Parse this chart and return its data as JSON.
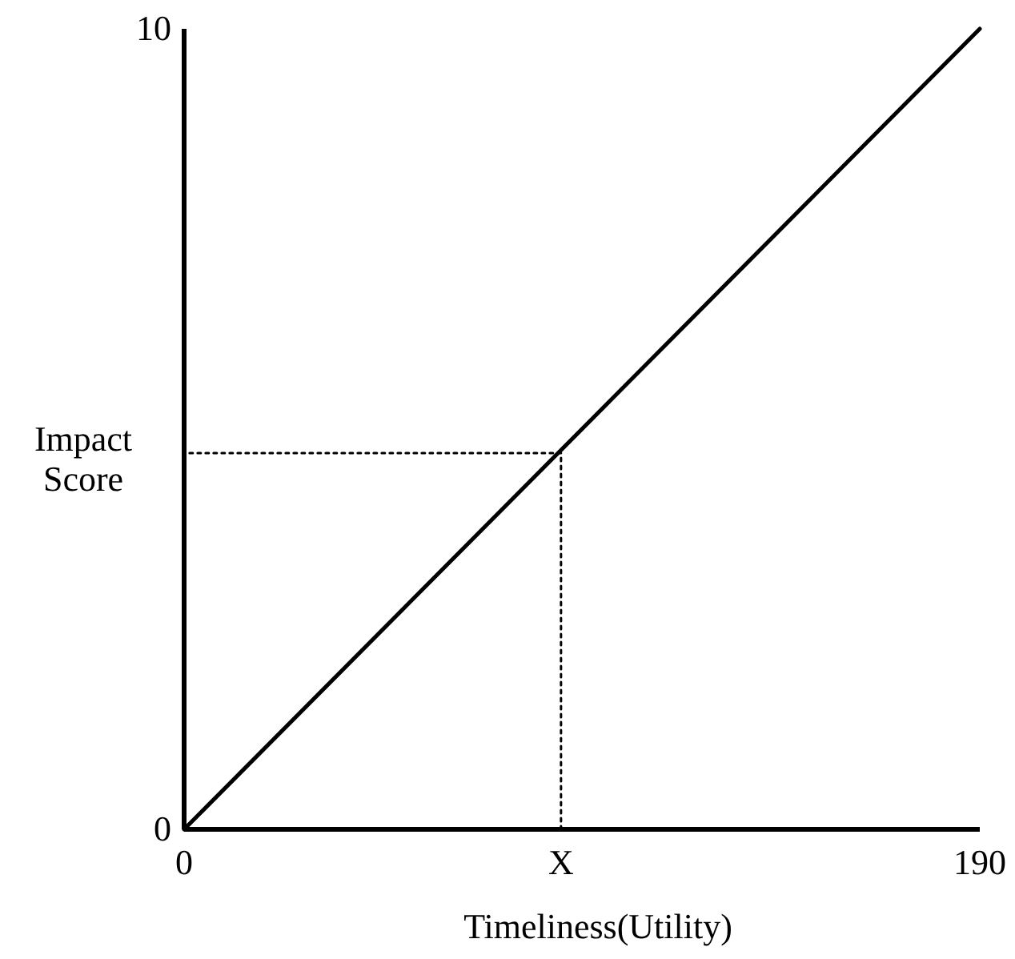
{
  "chart_data": {
    "type": "line",
    "xlabel": "Timeliness(Utility)",
    "ylabel": "Impact Score",
    "xlim": [
      0,
      190
    ],
    "ylim": [
      0,
      10
    ],
    "xticks": [
      0,
      {
        "value": 90,
        "label": "X"
      },
      190
    ],
    "yticks": [
      0,
      10
    ],
    "series": [
      {
        "x": [
          0,
          190
        ],
        "values": [
          0,
          10
        ],
        "color": "#000000",
        "line_style": "solid"
      },
      {
        "x": [
          90,
          90,
          0
        ],
        "values": [
          0,
          4.7,
          4.7
        ],
        "color": "#000000",
        "line_style": "dotted"
      }
    ],
    "grid": false,
    "marker": "none"
  }
}
